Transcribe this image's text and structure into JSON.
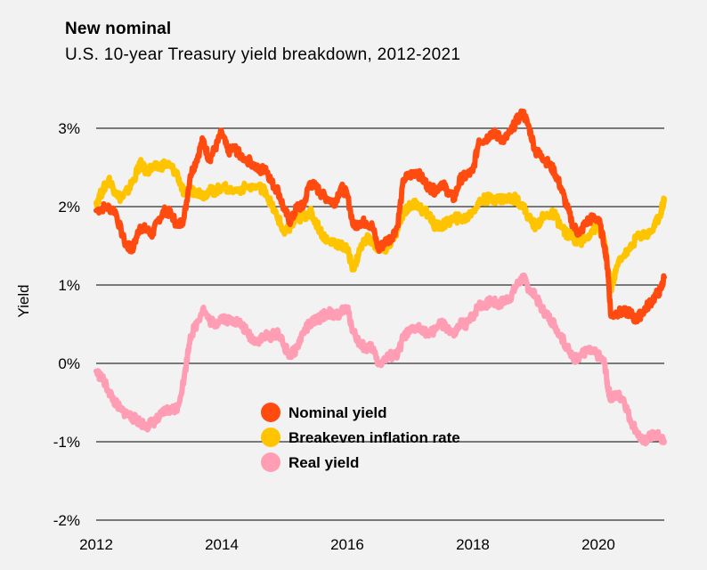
{
  "chart_data": {
    "type": "line",
    "title": "New nominal",
    "subtitle": "U.S. 10-year Treasury yield breakdown, 2012-2021",
    "xlabel": "",
    "ylabel": "Yield",
    "xlim": [
      2012,
      2021.05
    ],
    "ylim": [
      -2,
      3.3
    ],
    "x_ticks": [
      2012,
      2014,
      2016,
      2018,
      2020
    ],
    "x_tick_labels": [
      "2012",
      "2014",
      "2016",
      "2018",
      "2020"
    ],
    "y_ticks": [
      3,
      2,
      1,
      0,
      -1,
      -2
    ],
    "y_tick_labels": [
      "3%",
      "2%",
      "1%",
      "0%",
      "-1%",
      "-2%"
    ],
    "grid": "horizontal",
    "legend_position": "lower-center",
    "series": [
      {
        "name": "Nominal yield",
        "color": "#ff4b10",
        "points": [
          [
            2012.0,
            1.95
          ],
          [
            2012.15,
            2.0
          ],
          [
            2012.3,
            1.95
          ],
          [
            2012.45,
            1.55
          ],
          [
            2012.55,
            1.45
          ],
          [
            2012.6,
            1.5
          ],
          [
            2012.7,
            1.75
          ],
          [
            2012.8,
            1.7
          ],
          [
            2012.9,
            1.65
          ],
          [
            2013.0,
            1.85
          ],
          [
            2013.1,
            1.95
          ],
          [
            2013.2,
            1.9
          ],
          [
            2013.3,
            1.75
          ],
          [
            2013.4,
            1.85
          ],
          [
            2013.5,
            2.4
          ],
          [
            2013.6,
            2.6
          ],
          [
            2013.7,
            2.85
          ],
          [
            2013.8,
            2.6
          ],
          [
            2013.9,
            2.75
          ],
          [
            2014.0,
            2.95
          ],
          [
            2014.1,
            2.7
          ],
          [
            2014.2,
            2.75
          ],
          [
            2014.3,
            2.65
          ],
          [
            2014.5,
            2.55
          ],
          [
            2014.6,
            2.45
          ],
          [
            2014.7,
            2.5
          ],
          [
            2014.8,
            2.3
          ],
          [
            2014.9,
            2.2
          ],
          [
            2015.0,
            1.95
          ],
          [
            2015.1,
            1.8
          ],
          [
            2015.2,
            2.0
          ],
          [
            2015.3,
            2.0
          ],
          [
            2015.4,
            2.3
          ],
          [
            2015.5,
            2.25
          ],
          [
            2015.6,
            2.15
          ],
          [
            2015.7,
            2.1
          ],
          [
            2015.8,
            2.05
          ],
          [
            2015.9,
            2.25
          ],
          [
            2016.0,
            2.15
          ],
          [
            2016.1,
            1.75
          ],
          [
            2016.2,
            1.8
          ],
          [
            2016.3,
            1.8
          ],
          [
            2016.4,
            1.75
          ],
          [
            2016.5,
            1.45
          ],
          [
            2016.6,
            1.55
          ],
          [
            2016.7,
            1.6
          ],
          [
            2016.8,
            1.75
          ],
          [
            2016.9,
            2.35
          ],
          [
            2017.0,
            2.4
          ],
          [
            2017.1,
            2.45
          ],
          [
            2017.2,
            2.35
          ],
          [
            2017.3,
            2.25
          ],
          [
            2017.4,
            2.2
          ],
          [
            2017.5,
            2.3
          ],
          [
            2017.6,
            2.2
          ],
          [
            2017.7,
            2.1
          ],
          [
            2017.8,
            2.35
          ],
          [
            2017.9,
            2.4
          ],
          [
            2018.0,
            2.45
          ],
          [
            2018.1,
            2.85
          ],
          [
            2018.2,
            2.85
          ],
          [
            2018.3,
            2.95
          ],
          [
            2018.4,
            2.9
          ],
          [
            2018.5,
            2.85
          ],
          [
            2018.6,
            2.95
          ],
          [
            2018.7,
            3.1
          ],
          [
            2018.8,
            3.2
          ],
          [
            2018.9,
            3.0
          ],
          [
            2019.0,
            2.7
          ],
          [
            2019.1,
            2.65
          ],
          [
            2019.2,
            2.55
          ],
          [
            2019.3,
            2.45
          ],
          [
            2019.4,
            2.25
          ],
          [
            2019.5,
            2.0
          ],
          [
            2019.6,
            1.75
          ],
          [
            2019.7,
            1.65
          ],
          [
            2019.8,
            1.8
          ],
          [
            2019.9,
            1.85
          ],
          [
            2020.0,
            1.85
          ],
          [
            2020.1,
            1.5
          ],
          [
            2020.15,
            1.2
          ],
          [
            2020.2,
            0.6
          ],
          [
            2020.3,
            0.65
          ],
          [
            2020.4,
            0.65
          ],
          [
            2020.5,
            0.65
          ],
          [
            2020.6,
            0.55
          ],
          [
            2020.7,
            0.65
          ],
          [
            2020.8,
            0.75
          ],
          [
            2020.9,
            0.85
          ],
          [
            2021.0,
            0.95
          ],
          [
            2021.05,
            1.1
          ]
        ]
      },
      {
        "name": "Breakeven inflation rate",
        "color": "#ffc400",
        "points": [
          [
            2012.0,
            2.05
          ],
          [
            2012.1,
            2.2
          ],
          [
            2012.2,
            2.35
          ],
          [
            2012.3,
            2.2
          ],
          [
            2012.4,
            2.1
          ],
          [
            2012.5,
            2.2
          ],
          [
            2012.6,
            2.35
          ],
          [
            2012.7,
            2.55
          ],
          [
            2012.8,
            2.45
          ],
          [
            2012.9,
            2.5
          ],
          [
            2013.0,
            2.5
          ],
          [
            2013.1,
            2.55
          ],
          [
            2013.2,
            2.5
          ],
          [
            2013.3,
            2.4
          ],
          [
            2013.4,
            2.15
          ],
          [
            2013.5,
            2.2
          ],
          [
            2013.6,
            2.2
          ],
          [
            2013.7,
            2.15
          ],
          [
            2013.8,
            2.2
          ],
          [
            2013.9,
            2.2
          ],
          [
            2014.0,
            2.25
          ],
          [
            2014.2,
            2.2
          ],
          [
            2014.4,
            2.25
          ],
          [
            2014.6,
            2.25
          ],
          [
            2014.7,
            2.2
          ],
          [
            2014.8,
            2.0
          ],
          [
            2014.9,
            1.85
          ],
          [
            2015.0,
            1.65
          ],
          [
            2015.1,
            1.75
          ],
          [
            2015.2,
            1.85
          ],
          [
            2015.3,
            1.85
          ],
          [
            2015.4,
            1.95
          ],
          [
            2015.5,
            1.8
          ],
          [
            2015.6,
            1.65
          ],
          [
            2015.7,
            1.55
          ],
          [
            2015.8,
            1.55
          ],
          [
            2015.9,
            1.5
          ],
          [
            2016.0,
            1.45
          ],
          [
            2016.1,
            1.2
          ],
          [
            2016.2,
            1.45
          ],
          [
            2016.3,
            1.6
          ],
          [
            2016.4,
            1.55
          ],
          [
            2016.5,
            1.45
          ],
          [
            2016.6,
            1.45
          ],
          [
            2016.7,
            1.55
          ],
          [
            2016.8,
            1.7
          ],
          [
            2016.9,
            1.95
          ],
          [
            2017.0,
            2.0
          ],
          [
            2017.1,
            2.05
          ],
          [
            2017.2,
            1.95
          ],
          [
            2017.3,
            1.9
          ],
          [
            2017.4,
            1.75
          ],
          [
            2017.5,
            1.75
          ],
          [
            2017.6,
            1.8
          ],
          [
            2017.7,
            1.85
          ],
          [
            2017.8,
            1.85
          ],
          [
            2017.9,
            1.85
          ],
          [
            2018.0,
            1.95
          ],
          [
            2018.1,
            2.05
          ],
          [
            2018.2,
            2.1
          ],
          [
            2018.3,
            2.1
          ],
          [
            2018.4,
            2.1
          ],
          [
            2018.5,
            2.1
          ],
          [
            2018.6,
            2.1
          ],
          [
            2018.7,
            2.1
          ],
          [
            2018.8,
            2.0
          ],
          [
            2018.9,
            1.85
          ],
          [
            2019.0,
            1.75
          ],
          [
            2019.1,
            1.85
          ],
          [
            2019.2,
            1.9
          ],
          [
            2019.3,
            1.9
          ],
          [
            2019.4,
            1.75
          ],
          [
            2019.5,
            1.65
          ],
          [
            2019.6,
            1.6
          ],
          [
            2019.7,
            1.55
          ],
          [
            2019.8,
            1.6
          ],
          [
            2019.9,
            1.7
          ],
          [
            2020.0,
            1.75
          ],
          [
            2020.1,
            1.55
          ],
          [
            2020.15,
            1.2
          ],
          [
            2020.2,
            0.95
          ],
          [
            2020.25,
            1.1
          ],
          [
            2020.35,
            1.35
          ],
          [
            2020.5,
            1.45
          ],
          [
            2020.6,
            1.6
          ],
          [
            2020.7,
            1.65
          ],
          [
            2020.8,
            1.65
          ],
          [
            2020.9,
            1.75
          ],
          [
            2021.0,
            1.95
          ],
          [
            2021.05,
            2.1
          ]
        ]
      },
      {
        "name": "Real yield",
        "color": "#ff9db4",
        "points": [
          [
            2012.0,
            -0.1
          ],
          [
            2012.1,
            -0.2
          ],
          [
            2012.2,
            -0.35
          ],
          [
            2012.3,
            -0.5
          ],
          [
            2012.4,
            -0.6
          ],
          [
            2012.5,
            -0.65
          ],
          [
            2012.6,
            -0.7
          ],
          [
            2012.7,
            -0.75
          ],
          [
            2012.8,
            -0.8
          ],
          [
            2012.9,
            -0.75
          ],
          [
            2013.0,
            -0.7
          ],
          [
            2013.1,
            -0.6
          ],
          [
            2013.2,
            -0.6
          ],
          [
            2013.3,
            -0.55
          ],
          [
            2013.4,
            -0.2
          ],
          [
            2013.5,
            0.35
          ],
          [
            2013.6,
            0.5
          ],
          [
            2013.7,
            0.7
          ],
          [
            2013.8,
            0.55
          ],
          [
            2013.9,
            0.5
          ],
          [
            2014.0,
            0.6
          ],
          [
            2014.1,
            0.55
          ],
          [
            2014.2,
            0.55
          ],
          [
            2014.3,
            0.5
          ],
          [
            2014.4,
            0.4
          ],
          [
            2014.5,
            0.3
          ],
          [
            2014.6,
            0.3
          ],
          [
            2014.7,
            0.35
          ],
          [
            2014.8,
            0.35
          ],
          [
            2014.9,
            0.4
          ],
          [
            2015.0,
            0.2
          ],
          [
            2015.1,
            0.1
          ],
          [
            2015.2,
            0.2
          ],
          [
            2015.3,
            0.4
          ],
          [
            2015.4,
            0.5
          ],
          [
            2015.5,
            0.55
          ],
          [
            2015.6,
            0.6
          ],
          [
            2015.7,
            0.65
          ],
          [
            2015.8,
            0.6
          ],
          [
            2015.9,
            0.65
          ],
          [
            2016.0,
            0.7
          ],
          [
            2016.1,
            0.4
          ],
          [
            2016.2,
            0.25
          ],
          [
            2016.3,
            0.2
          ],
          [
            2016.4,
            0.2
          ],
          [
            2016.5,
            0.0
          ],
          [
            2016.6,
            0.05
          ],
          [
            2016.7,
            0.1
          ],
          [
            2016.8,
            0.1
          ],
          [
            2016.9,
            0.35
          ],
          [
            2017.0,
            0.4
          ],
          [
            2017.1,
            0.45
          ],
          [
            2017.2,
            0.45
          ],
          [
            2017.3,
            0.35
          ],
          [
            2017.4,
            0.45
          ],
          [
            2017.5,
            0.5
          ],
          [
            2017.6,
            0.45
          ],
          [
            2017.7,
            0.35
          ],
          [
            2017.8,
            0.5
          ],
          [
            2017.9,
            0.5
          ],
          [
            2018.0,
            0.6
          ],
          [
            2018.1,
            0.75
          ],
          [
            2018.2,
            0.75
          ],
          [
            2018.3,
            0.8
          ],
          [
            2018.4,
            0.75
          ],
          [
            2018.5,
            0.8
          ],
          [
            2018.6,
            0.85
          ],
          [
            2018.7,
            1.0
          ],
          [
            2018.8,
            1.1
          ],
          [
            2018.9,
            0.95
          ],
          [
            2019.0,
            0.85
          ],
          [
            2019.1,
            0.7
          ],
          [
            2019.2,
            0.6
          ],
          [
            2019.3,
            0.5
          ],
          [
            2019.4,
            0.35
          ],
          [
            2019.5,
            0.2
          ],
          [
            2019.6,
            0.05
          ],
          [
            2019.7,
            0.1
          ],
          [
            2019.8,
            0.15
          ],
          [
            2019.9,
            0.15
          ],
          [
            2020.0,
            0.1
          ],
          [
            2020.1,
            0.0
          ],
          [
            2020.15,
            -0.3
          ],
          [
            2020.2,
            -0.45
          ],
          [
            2020.3,
            -0.4
          ],
          [
            2020.4,
            -0.45
          ],
          [
            2020.5,
            -0.7
          ],
          [
            2020.6,
            -0.85
          ],
          [
            2020.7,
            -1.0
          ],
          [
            2020.8,
            -0.95
          ],
          [
            2020.9,
            -0.9
          ],
          [
            2021.0,
            -0.95
          ],
          [
            2021.05,
            -1.0
          ]
        ]
      }
    ]
  }
}
